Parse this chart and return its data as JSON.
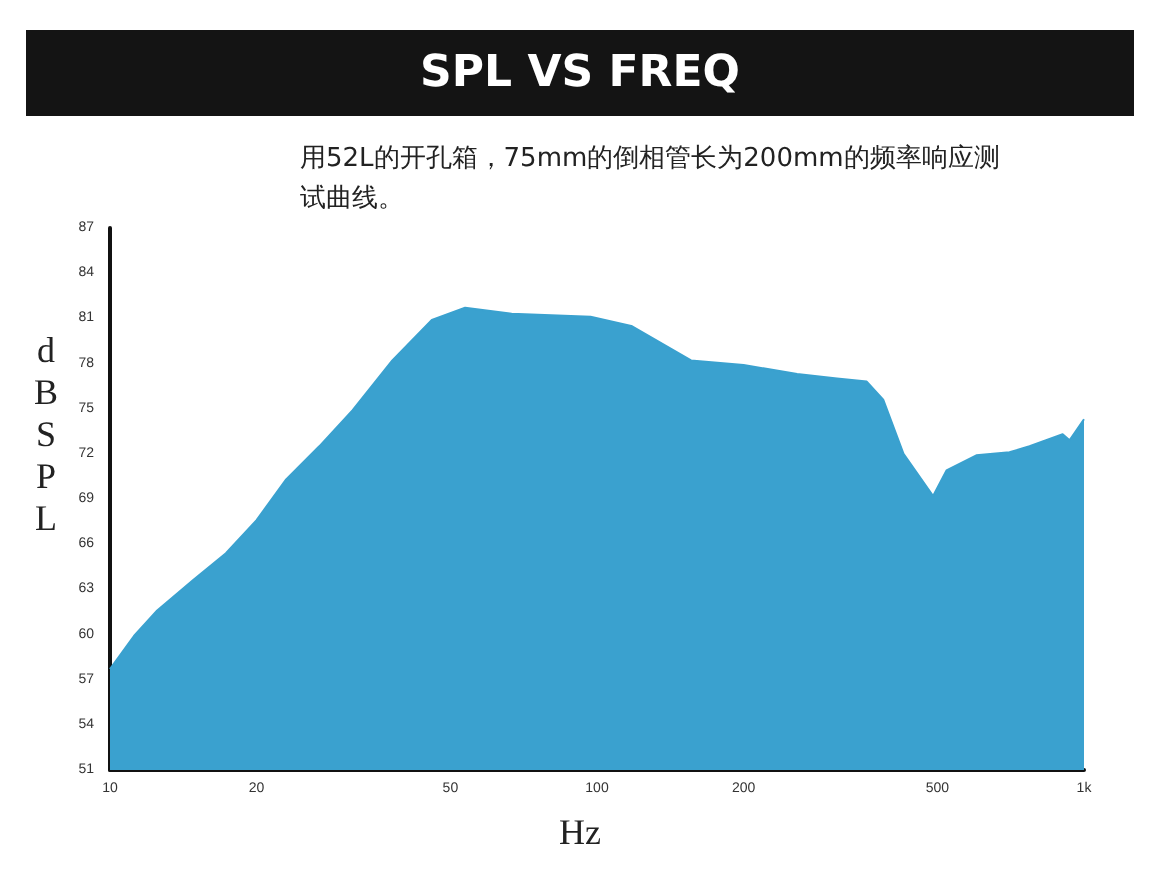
{
  "chart_data": {
    "type": "area",
    "title": "SPL VS FREQ",
    "subtitle": "用52L的开孔箱，75mm的倒相管长为200mm的频率响应测试曲线。",
    "xlabel": "Hz",
    "ylabel": "dBSPL",
    "x": [
      10,
      11.2,
      12.5,
      14.8,
      17.3,
      20,
      23,
      26.9,
      31.5,
      38,
      45.8,
      53.6,
      66.8,
      97,
      117.6,
      156,
      200,
      257.6,
      311,
      358,
      387,
      426,
      490,
      522,
      601,
      703,
      773,
      904,
      934,
      1000
    ],
    "series": [
      {
        "color": "#3aa1cf",
        "values": [
          57.7,
          59.9,
          61.6,
          63.6,
          65.4,
          67.6,
          70.3,
          72.5,
          74.9,
          78.2,
          80.9,
          81.7,
          81.3,
          81.1,
          80.5,
          78.2,
          77.9,
          77.3,
          77.0,
          76.8,
          75.6,
          72.0,
          69.2,
          70.9,
          71.9,
          72.1,
          72.5,
          73.3,
          72.9,
          74.3
        ]
      }
    ],
    "log": "x",
    "xlim": [
      10,
      1000
    ],
    "xticks": [
      10,
      20,
      50,
      100,
      200,
      500,
      {
        "value": 1000,
        "label": "1k"
      }
    ],
    "ylim": [
      51,
      87
    ],
    "yticks": [
      51,
      54,
      57,
      60,
      63,
      66,
      69,
      72,
      75,
      78,
      81,
      84,
      87
    ],
    "grid": false,
    "marker": "none"
  }
}
